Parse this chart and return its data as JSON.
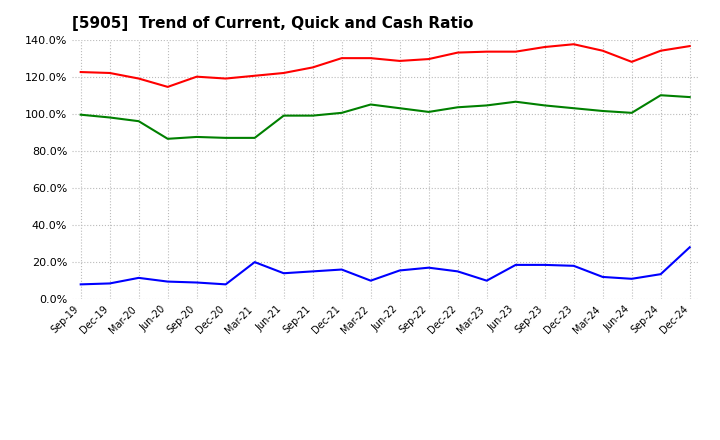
{
  "title": "[5905]  Trend of Current, Quick and Cash Ratio",
  "labels": [
    "Sep-19",
    "Dec-19",
    "Mar-20",
    "Jun-20",
    "Sep-20",
    "Dec-20",
    "Mar-21",
    "Jun-21",
    "Sep-21",
    "Dec-21",
    "Mar-22",
    "Jun-22",
    "Sep-22",
    "Dec-22",
    "Mar-23",
    "Jun-23",
    "Sep-23",
    "Dec-23",
    "Mar-24",
    "Jun-24",
    "Sep-24",
    "Dec-24"
  ],
  "current_ratio": [
    122.5,
    122.0,
    119.0,
    114.5,
    120.0,
    119.0,
    120.5,
    122.0,
    125.0,
    130.0,
    130.0,
    128.5,
    129.5,
    133.0,
    133.5,
    133.5,
    136.0,
    137.5,
    134.0,
    128.0,
    134.0,
    136.5
  ],
  "quick_ratio": [
    99.5,
    98.0,
    96.0,
    86.5,
    87.5,
    87.0,
    87.0,
    99.0,
    99.0,
    100.5,
    105.0,
    103.0,
    101.0,
    103.5,
    104.5,
    106.5,
    104.5,
    103.0,
    101.5,
    100.5,
    110.0,
    109.0
  ],
  "cash_ratio": [
    8.0,
    8.5,
    11.5,
    9.5,
    9.0,
    8.0,
    20.0,
    14.0,
    15.0,
    16.0,
    10.0,
    15.5,
    17.0,
    15.0,
    10.0,
    18.5,
    18.5,
    18.0,
    12.0,
    11.0,
    13.5,
    28.0
  ],
  "current_color": "#ff0000",
  "quick_color": "#008000",
  "cash_color": "#0000ff",
  "ylim": [
    0,
    140
  ],
  "yticks": [
    0,
    20,
    40,
    60,
    80,
    100,
    120,
    140
  ],
  "background_color": "#ffffff",
  "grid_color": "#bbbbbb"
}
